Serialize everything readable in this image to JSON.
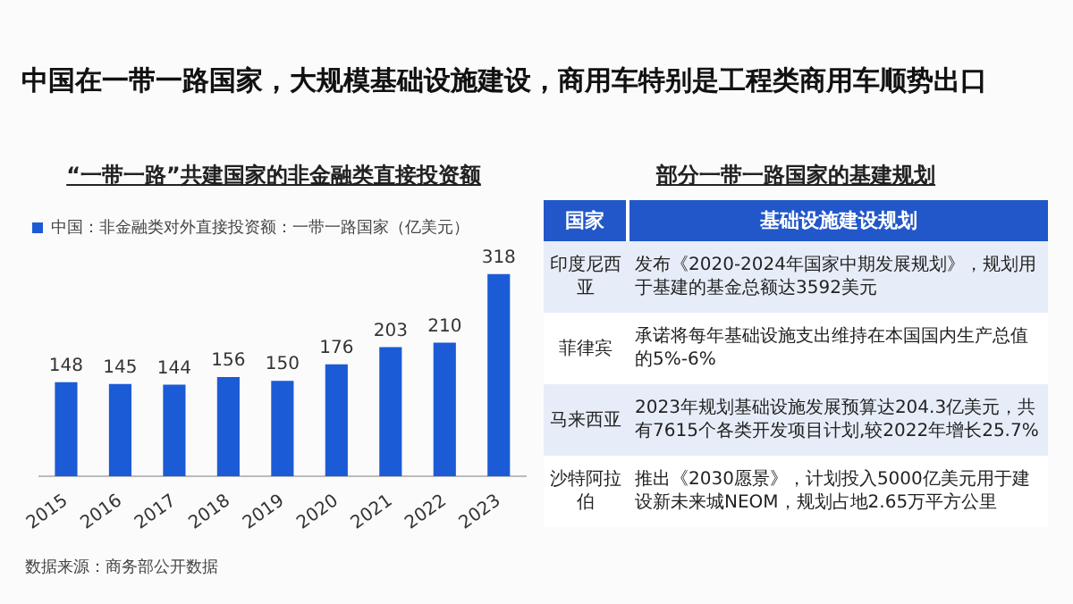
{
  "chart_data": [
    {
      "type": "other",
      "title": "中国在一带一路国家，大规模基础设施建设，商用车特别是工程类商用车顺势出口"
    },
    {
      "type": "bar",
      "title": "“一带一路”共建国家的非金融类直接投资额",
      "categories": [
        "2015",
        "2016",
        "2017",
        "2018",
        "2019",
        "2020",
        "2021",
        "2022",
        "2023"
      ],
      "series": [
        {
          "name": "中国：非金融类对外直接投资额：一带一路国家（亿美元）",
          "color": "#1c5bd6",
          "values": [
            148,
            145,
            144,
            156,
            150,
            176,
            203,
            210,
            318
          ]
        }
      ],
      "data_labels": true,
      "legend": "top",
      "grid": false,
      "annotations": [
        "数据来源：商务部公开数据"
      ]
    },
    {
      "type": "other",
      "title": "部分一带一路国家的基建规划",
      "categories": [
        "国家",
        "基础设施建设规划"
      ],
      "y_categories": [
        "印度尼西亚",
        "菲律宾",
        "马来西亚",
        "沙特阿拉伯"
      ],
      "annotations": [
        "发布《2020-2024年国家中期发展规划》，规划用于基建的基金总额达3592美元",
        "承诺将每年基础设施支出维持在本国国内生产总值的5%-6%",
        "2023年规划基础设施发展预算达204.3亿美元，共有7615个各类开发项目计划,较2022年增长25.7%",
        "推出《2030愿景》，计划投入5000亿美元用于建设新未来城NEOM，规划占地2.65万平方公里"
      ]
    }
  ]
}
